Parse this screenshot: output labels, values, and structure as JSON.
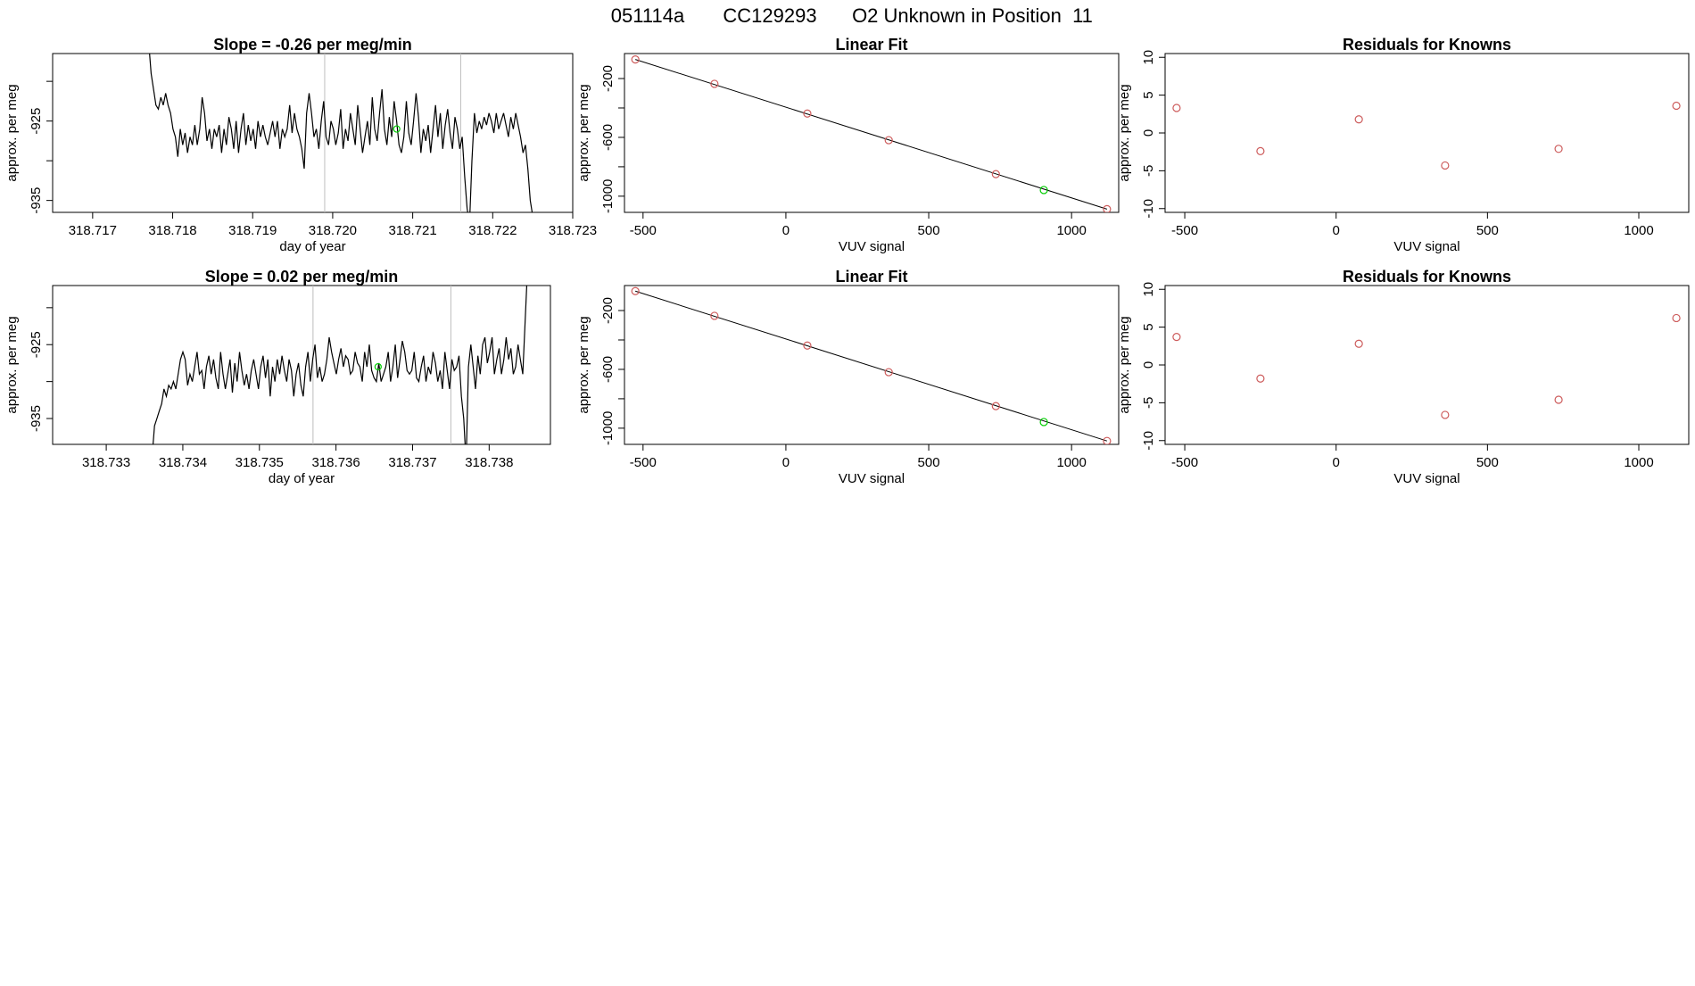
{
  "header": {
    "run_id": "051114a",
    "tank_id": "CC129293",
    "description": "O2 Unknown in Position  11"
  },
  "colors": {
    "line": "#000000",
    "frame": "#000000",
    "known_point": "#cd5c5c",
    "unknown_point": "#00cd00",
    "divider": "#bebebe"
  },
  "chart_data": [
    {
      "id": "timeseries-1",
      "type": "line",
      "title": "Slope =  -0.26  per meg/min",
      "xlabel": "day of year",
      "ylabel": "approx. per meg",
      "xlim": [
        318.7165,
        318.723
      ],
      "ylim": [
        -936.5,
        -916.5
      ],
      "x_ticks": [
        "318.717",
        "318.718",
        "318.719",
        "318.720",
        "318.721",
        "318.722",
        "318.723"
      ],
      "y_ticks": [
        -935,
        -930,
        -925,
        -920
      ],
      "y_tick_labels": [
        "-935",
        "",
        "-925",
        ""
      ],
      "vertical_markers": [
        318.7199,
        318.7216
      ],
      "series": [
        {
          "x_start": 318.7177,
          "x_end": 318.7225,
          "values": [
            -915,
            -919,
            -921,
            -923,
            -923.5,
            -922,
            -923,
            -921.5,
            -923,
            -924,
            -926,
            -927,
            -929.5,
            -926,
            -928,
            -926.5,
            -929,
            -927,
            -928,
            -925.5,
            -928,
            -926,
            -922,
            -924,
            -927.5,
            -926,
            -928.5,
            -926,
            -927,
            -925.5,
            -929,
            -926,
            -928,
            -924.5,
            -926,
            -928.5,
            -925,
            -929,
            -926,
            -924,
            -928,
            -925.5,
            -927.5,
            -926,
            -928.5,
            -925,
            -927,
            -925.5,
            -927,
            -928,
            -926.5,
            -925,
            -927,
            -925,
            -928.5,
            -926,
            -927,
            -926,
            -923,
            -926.5,
            -924,
            -926,
            -927,
            -928.5,
            -931,
            -924,
            -921.5,
            -924,
            -927,
            -926,
            -928.5,
            -925,
            -922.5,
            -927,
            -928,
            -925,
            -926,
            -928,
            -926.5,
            -923.5,
            -928.5,
            -926,
            -927.5,
            -924,
            -926,
            -928,
            -923,
            -926,
            -929,
            -927,
            -925,
            -928,
            -922,
            -926,
            -927.5,
            -924,
            -921,
            -926,
            -928,
            -924.5,
            -927,
            -922.5,
            -925,
            -928,
            -929,
            -927,
            -922.5,
            -926.5,
            -928,
            -925,
            -921.5,
            -924.5,
            -929,
            -926,
            -927.5,
            -925.5,
            -929,
            -926,
            -923,
            -927,
            -924,
            -928.5,
            -925.5,
            -923.5,
            -926.5,
            -928.5,
            -924.5,
            -926,
            -928.5,
            -927,
            -932,
            -936,
            -938,
            -930,
            -924,
            -926.5,
            -925,
            -926,
            -924.5,
            -925.5,
            -924,
            -925,
            -926.5,
            -924,
            -926,
            -925,
            -924,
            -925.5,
            -927,
            -924.5,
            -926,
            -924,
            -925.5,
            -927,
            -929,
            -928,
            -931,
            -935,
            -937
          ]
        }
      ],
      "unknown_marker": {
        "x": 318.7208,
        "y": -926
      }
    },
    {
      "id": "linearfit-1",
      "type": "scatter",
      "title": "Linear Fit",
      "xlabel": "VUV signal",
      "ylabel": "approx. per meg",
      "xlim": [
        -565,
        1165
      ],
      "ylim": [
        -1110,
        -30
      ],
      "x_ticks": [
        -500,
        0,
        500,
        1000
      ],
      "y_ticks": [
        -1000,
        -800,
        -600,
        -400,
        -200
      ],
      "y_tick_labels": [
        "-1000",
        "",
        "-600",
        "",
        "-200"
      ],
      "fit_line": {
        "x": [
          -527,
          1124
        ],
        "y": [
          -70,
          -1088
        ]
      },
      "knowns": {
        "x": [
          -527,
          -250,
          75,
          360,
          735,
          1124
        ],
        "y": [
          -70,
          -236,
          -438,
          -619,
          -850,
          -1088
        ]
      },
      "unknown": {
        "x": 903,
        "y": -958
      }
    },
    {
      "id": "residuals-1",
      "type": "scatter",
      "title": "Residuals for Knowns",
      "xlabel": "VUV signal",
      "ylabel": "approx. per meg",
      "xlim": [
        -565,
        1165
      ],
      "ylim": [
        -10.5,
        10.5
      ],
      "x_ticks": [
        -500,
        0,
        500,
        1000
      ],
      "y_ticks": [
        -10,
        -5,
        0,
        5,
        10
      ],
      "y_tick_labels": [
        "-10",
        "-5",
        "0",
        "5",
        "10"
      ],
      "points": {
        "x": [
          -527,
          -250,
          75,
          360,
          735,
          1124
        ],
        "y": [
          3.3,
          -2.4,
          1.8,
          -4.3,
          -2.1,
          3.6
        ]
      }
    },
    {
      "id": "timeseries-2",
      "type": "line",
      "title": "Slope =  0.02  per meg/min",
      "xlabel": "day of year",
      "ylabel": "approx. per meg",
      "xlim": [
        318.7323,
        318.7388
      ],
      "ylim": [
        -938.5,
        -917
      ],
      "x_ticks": [
        "318.733",
        "318.734",
        "318.735",
        "318.736",
        "318.737",
        "318.738"
      ],
      "y_ticks": [
        -935,
        -930,
        -925,
        -920
      ],
      "y_tick_labels": [
        "-935",
        "",
        "-925",
        ""
      ],
      "vertical_markers": [
        318.7357,
        318.7375
      ],
      "series": [
        {
          "x_start": 318.7336,
          "x_end": 318.7385,
          "values": [
            -940,
            -936,
            -935,
            -934,
            -933,
            -931,
            -932,
            -930.5,
            -931,
            -930,
            -931,
            -929,
            -927,
            -926,
            -927,
            -930.5,
            -929,
            -930,
            -928,
            -926,
            -929,
            -928.5,
            -931,
            -928,
            -926.5,
            -929,
            -927,
            -929.5,
            -931,
            -926,
            -929,
            -931,
            -929,
            -927,
            -931.5,
            -927.5,
            -930,
            -926,
            -928.5,
            -930.5,
            -929,
            -931,
            -928.5,
            -927,
            -929,
            -931,
            -928,
            -926.5,
            -929.5,
            -927,
            -932,
            -928,
            -930,
            -927,
            -929,
            -926.5,
            -928.5,
            -930,
            -927,
            -928.5,
            -932,
            -929,
            -927.5,
            -930.5,
            -932,
            -928,
            -926,
            -930,
            -927,
            -925,
            -929.5,
            -928,
            -930,
            -929,
            -927,
            -924,
            -926,
            -927.5,
            -929,
            -927,
            -925.5,
            -928,
            -926.5,
            -927,
            -929,
            -928.5,
            -926,
            -927.5,
            -928,
            -930,
            -926,
            -928,
            -925,
            -928.5,
            -929.5,
            -930,
            -927.5,
            -930,
            -929,
            -928,
            -926,
            -930,
            -928,
            -925,
            -929.5,
            -927,
            -924.5,
            -926,
            -928.5,
            -929,
            -928.5,
            -926,
            -929.5,
            -930,
            -928,
            -926.5,
            -930,
            -928,
            -929,
            -926,
            -927.5,
            -930,
            -928.5,
            -931,
            -926,
            -928.5,
            -931,
            -927,
            -928.5,
            -928,
            -926.5,
            -932,
            -935,
            -941,
            -928,
            -925,
            -928,
            -931,
            -926.5,
            -929,
            -925,
            -924,
            -927.5,
            -926,
            -924,
            -929,
            -927,
            -925.5,
            -929,
            -927,
            -924,
            -927,
            -925.5,
            -929,
            -928,
            -925,
            -927,
            -929,
            -922,
            -915
          ]
        }
      ],
      "unknown_marker": {
        "x": 318.73655,
        "y": -928
      }
    },
    {
      "id": "linearfit-2",
      "type": "scatter",
      "title": "Linear Fit",
      "xlabel": "VUV signal",
      "ylabel": "approx. per meg",
      "xlim": [
        -565,
        1165
      ],
      "ylim": [
        -1110,
        -30
      ],
      "x_ticks": [
        -500,
        0,
        500,
        1000
      ],
      "y_ticks": [
        -1000,
        -800,
        -600,
        -400,
        -200
      ],
      "y_tick_labels": [
        "-1000",
        "",
        "-600",
        "",
        "-200"
      ],
      "fit_line": {
        "x": [
          -527,
          1124
        ],
        "y": [
          -68,
          -1087
        ]
      },
      "knowns": {
        "x": [
          -527,
          -250,
          75,
          360,
          735,
          1124
        ],
        "y": [
          -68,
          -236,
          -438,
          -619,
          -850,
          -1087
        ]
      },
      "unknown": {
        "x": 903,
        "y": -958
      }
    },
    {
      "id": "residuals-2",
      "type": "scatter",
      "title": "Residuals for Knowns",
      "xlabel": "VUV signal",
      "ylabel": "approx. per meg",
      "xlim": [
        -565,
        1165
      ],
      "ylim": [
        -10.5,
        10.5
      ],
      "x_ticks": [
        -500,
        0,
        500,
        1000
      ],
      "y_ticks": [
        -10,
        -5,
        0,
        5,
        10
      ],
      "y_tick_labels": [
        "-10",
        "-5",
        "0",
        "5",
        "10"
      ],
      "points": {
        "x": [
          -527,
          -250,
          75,
          360,
          735,
          1124
        ],
        "y": [
          3.7,
          -1.8,
          2.8,
          -6.6,
          -4.6,
          6.2
        ]
      }
    }
  ]
}
